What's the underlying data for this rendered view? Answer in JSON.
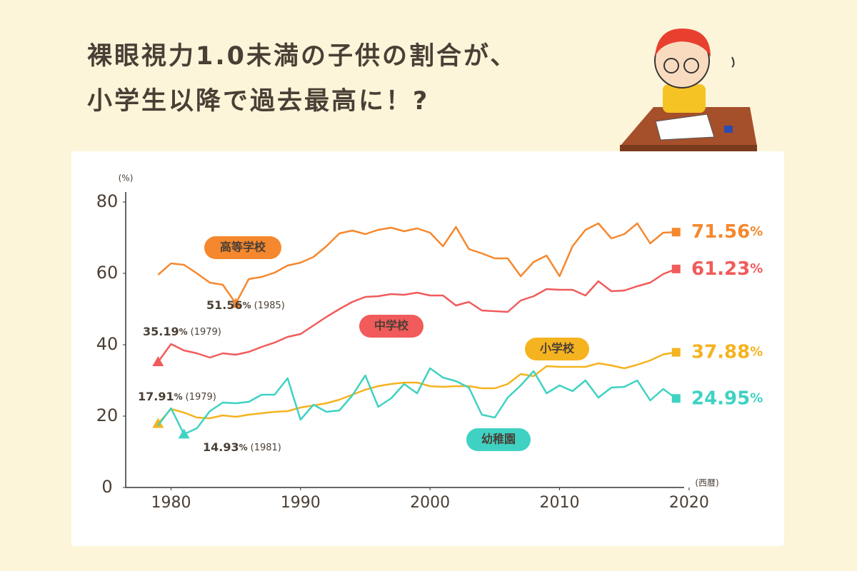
{
  "title": [
    "裸眼視力1.0未満の子供の割合が、",
    "小学生以降で過去最高に！?"
  ],
  "chart_data": {
    "type": "line",
    "y_label": "(%)",
    "x_label": "(西暦)",
    "unit": "%",
    "x": [
      1979,
      1980,
      1981,
      1982,
      1983,
      1984,
      1985,
      1986,
      1987,
      1988,
      1989,
      1990,
      1991,
      1992,
      1993,
      1994,
      1995,
      1996,
      1997,
      1998,
      1999,
      2000,
      2001,
      2002,
      2003,
      2004,
      2005,
      2006,
      2007,
      2008,
      2009,
      2010,
      2011,
      2012,
      2013,
      2014,
      2015,
      2016,
      2017,
      2018,
      2019
    ],
    "xlim": [
      1976.5,
      2021
    ],
    "xticks": [
      1980,
      1990,
      2000,
      2010,
      2020
    ],
    "ylim": [
      0,
      80
    ],
    "yticks": [
      0,
      20,
      40,
      60,
      80
    ],
    "series": [
      {
        "name": "高等学校",
        "color": "#f5882e",
        "end_label": "71.56",
        "annotation": {
          "x": 1985,
          "label": "51.56",
          "note": "(1985)"
        },
        "values": [
          59.6,
          62.8,
          62.4,
          60,
          57.4,
          56.8,
          51.56,
          58.4,
          59,
          60.2,
          62.2,
          63,
          64.6,
          67.6,
          71.2,
          72,
          71,
          72.2,
          72.8,
          71.8,
          72.6,
          71.4,
          67.6,
          73,
          66.8,
          65.6,
          64.2,
          64.2,
          59.2,
          63.2,
          65,
          59.2,
          67.6,
          72.2,
          74,
          69.8,
          71,
          74,
          68.4,
          71.4,
          71.56
        ]
      },
      {
        "name": "中学校",
        "color": "#f15b5b",
        "end_label": "61.23",
        "annotation": {
          "x": 1979,
          "label": "35.19",
          "note": "(1979)"
        },
        "values": [
          35.19,
          40.2,
          38.4,
          37.6,
          36.4,
          37.6,
          37.2,
          38,
          39.4,
          40.6,
          42.2,
          43,
          45.4,
          47.8,
          50,
          52,
          53.4,
          53.6,
          54.2,
          54,
          54.6,
          53.8,
          53.8,
          51,
          52,
          49.6,
          49.4,
          49.2,
          52.4,
          53.6,
          55.6,
          55.4,
          55.4,
          53.8,
          57.8,
          55,
          55.2,
          56.4,
          57.4,
          59.8,
          61.23
        ]
      },
      {
        "name": "小学校",
        "color": "#f5b31f",
        "end_label": "37.88",
        "annotation": {
          "x": 1979,
          "label": "17.91",
          "note": "(1979)"
        },
        "values": [
          17.91,
          22,
          21,
          19.6,
          19.4,
          20.2,
          19.8,
          20.4,
          20.8,
          21.2,
          21.4,
          22.4,
          23,
          23.6,
          24.6,
          26,
          27.4,
          28.4,
          29,
          29.4,
          29.4,
          28.4,
          28.2,
          28.4,
          28.4,
          27.8,
          27.8,
          29,
          31.8,
          31.2,
          34,
          33.8,
          33.8,
          33.8,
          34.8,
          34.2,
          33.4,
          34.4,
          35.6,
          37.3,
          37.88
        ]
      },
      {
        "name": "幼稚園",
        "color": "#3fd2c3",
        "end_label": "24.95",
        "annotation": {
          "x": 1981,
          "label": "14.93",
          "note": "(1981)"
        },
        "values": [
          17.4,
          22.2,
          14.93,
          16.6,
          21.4,
          23.8,
          23.6,
          24,
          26,
          26,
          30.6,
          19,
          23.2,
          21.2,
          21.6,
          25.8,
          31.4,
          22.6,
          25,
          29,
          26.4,
          33.4,
          30.8,
          29.8,
          28,
          20.4,
          19.6,
          25.2,
          28.6,
          32.6,
          26.4,
          28.6,
          27,
          30,
          25.2,
          28,
          28.2,
          30,
          24.4,
          27.6,
          24.95
        ]
      }
    ]
  }
}
